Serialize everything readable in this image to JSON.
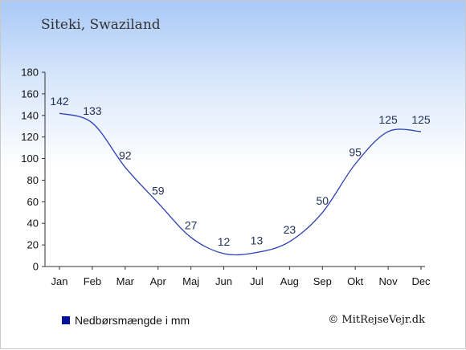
{
  "header": {
    "location": "Siteki, Swaziland"
  },
  "legend": {
    "label": "Nedbørsmængde i mm",
    "color": "#00129c"
  },
  "footer": {
    "copyright": "© MitRejseVejr.dk"
  },
  "chart_data": {
    "type": "line",
    "categories": [
      "Jan",
      "Feb",
      "Mar",
      "Apr",
      "Maj",
      "Jun",
      "Jul",
      "Aug",
      "Sep",
      "Okt",
      "Nov",
      "Dec"
    ],
    "series": [
      {
        "name": "Nedbørsmængde i mm",
        "values": [
          142,
          133,
          92,
          59,
          27,
          12,
          13,
          23,
          50,
          95,
          125,
          125
        ]
      }
    ],
    "data_labels": [
      "142",
      "133",
      "92",
      "59",
      "27",
      "12",
      "13",
      "23",
      "50",
      "95",
      "125",
      "125"
    ],
    "yticks": [
      0,
      20,
      40,
      60,
      80,
      100,
      120,
      140,
      160,
      180
    ],
    "ylim": [
      0,
      180
    ],
    "line_color": "#2d3fb5",
    "grid": false,
    "legend_position": "bottom-left"
  }
}
